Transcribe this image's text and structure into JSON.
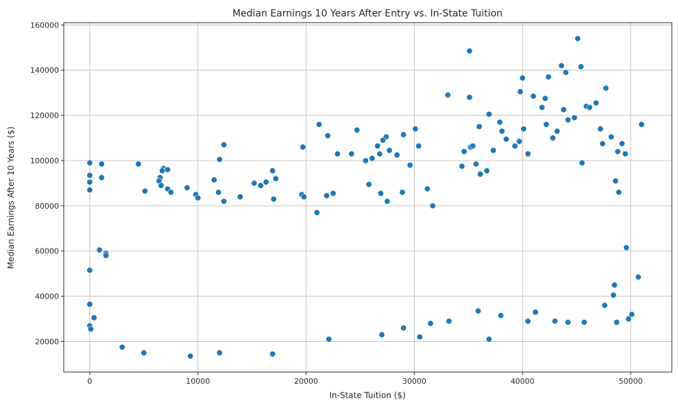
{
  "chart_data": {
    "type": "scatter",
    "title": "Median Earnings 10 Years After Entry vs. In-State Tuition",
    "xlabel": "In-State Tuition ($)",
    "ylabel": "Median Earnings After 10 Years ($)",
    "xlim": [
      -2400,
      53800
    ],
    "ylim": [
      6500,
      161000
    ],
    "xticks": [
      0,
      10000,
      20000,
      30000,
      40000,
      50000
    ],
    "xtick_labels": [
      "0",
      "10000",
      "20000",
      "30000",
      "40000",
      "50000"
    ],
    "yticks": [
      20000,
      40000,
      60000,
      80000,
      100000,
      120000,
      140000,
      160000
    ],
    "ytick_labels": [
      "20000",
      "40000",
      "60000",
      "80000",
      "100000",
      "120000",
      "140000",
      "160000"
    ],
    "grid": true,
    "marker_color": "#1f77b4",
    "marker_edge_color": "#ffffff",
    "points": [
      [
        0,
        99000
      ],
      [
        0,
        93500
      ],
      [
        0,
        90500
      ],
      [
        0,
        87000
      ],
      [
        0,
        51500
      ],
      [
        0,
        36500
      ],
      [
        0,
        27000
      ],
      [
        100,
        25500
      ],
      [
        400,
        30500
      ],
      [
        1100,
        98500
      ],
      [
        1100,
        92500
      ],
      [
        1500,
        59000
      ],
      [
        1500,
        58000
      ],
      [
        900,
        60500
      ],
      [
        4500,
        98500
      ],
      [
        6800,
        96500
      ],
      [
        7200,
        96000
      ],
      [
        6700,
        95500
      ],
      [
        6500,
        92500
      ],
      [
        6400,
        91000
      ],
      [
        5100,
        86500
      ],
      [
        6600,
        89000
      ],
      [
        7200,
        87500
      ],
      [
        7500,
        86000
      ],
      [
        9000,
        88000
      ],
      [
        9800,
        85000
      ],
      [
        10000,
        83500
      ],
      [
        12400,
        107000
      ],
      [
        12000,
        100500
      ],
      [
        11500,
        91500
      ],
      [
        11900,
        86000
      ],
      [
        12400,
        82000
      ],
      [
        13900,
        84000
      ],
      [
        15200,
        90000
      ],
      [
        15800,
        89000
      ],
      [
        16300,
        90500
      ],
      [
        16900,
        95500
      ],
      [
        17200,
        92000
      ],
      [
        17000,
        83000
      ],
      [
        19700,
        106000
      ],
      [
        19600,
        85000
      ],
      [
        19800,
        84000
      ],
      [
        21000,
        77000
      ],
      [
        21200,
        116000
      ],
      [
        22000,
        111000
      ],
      [
        22900,
        103000
      ],
      [
        24200,
        103000
      ],
      [
        24700,
        113500
      ],
      [
        22500,
        85500
      ],
      [
        21900,
        84500
      ],
      [
        25500,
        100000
      ],
      [
        26100,
        101000
      ],
      [
        26600,
        106500
      ],
      [
        26800,
        103000
      ],
      [
        27400,
        110500
      ],
      [
        27100,
        109000
      ],
      [
        27700,
        104500
      ],
      [
        28400,
        102500
      ],
      [
        29000,
        111500
      ],
      [
        29600,
        98000
      ],
      [
        30100,
        114000
      ],
      [
        30400,
        106500
      ],
      [
        25800,
        89500
      ],
      [
        26900,
        85500
      ],
      [
        27500,
        82000
      ],
      [
        28900,
        86000
      ],
      [
        31200,
        87500
      ],
      [
        31700,
        80000
      ],
      [
        33100,
        129000
      ],
      [
        35100,
        148500
      ],
      [
        35100,
        128000
      ],
      [
        34600,
        104000
      ],
      [
        35200,
        106000
      ],
      [
        35400,
        106500
      ],
      [
        34400,
        97500
      ],
      [
        36000,
        115000
      ],
      [
        36700,
        95500
      ],
      [
        36100,
        94000
      ],
      [
        35700,
        98500
      ],
      [
        36900,
        120500
      ],
      [
        37300,
        104500
      ],
      [
        37900,
        117000
      ],
      [
        38100,
        113000
      ],
      [
        38500,
        109500
      ],
      [
        39300,
        106500
      ],
      [
        39700,
        108500
      ],
      [
        40000,
        136500
      ],
      [
        39800,
        130500
      ],
      [
        40100,
        114000
      ],
      [
        40500,
        103000
      ],
      [
        41000,
        128500
      ],
      [
        41800,
        123500
      ],
      [
        42100,
        127500
      ],
      [
        42200,
        116000
      ],
      [
        42400,
        137000
      ],
      [
        43200,
        113000
      ],
      [
        42800,
        110000
      ],
      [
        43600,
        142000
      ],
      [
        43800,
        122500
      ],
      [
        44000,
        139000
      ],
      [
        44200,
        118000
      ],
      [
        44800,
        119000
      ],
      [
        45100,
        154000
      ],
      [
        45400,
        141500
      ],
      [
        45500,
        99000
      ],
      [
        45900,
        124000
      ],
      [
        46200,
        123500
      ],
      [
        46800,
        125500
      ],
      [
        47200,
        114000
      ],
      [
        47700,
        132000
      ],
      [
        47400,
        107500
      ],
      [
        48200,
        110500
      ],
      [
        48800,
        104000
      ],
      [
        49200,
        107500
      ],
      [
        49500,
        103000
      ],
      [
        48600,
        91000
      ],
      [
        48900,
        86000
      ],
      [
        49600,
        61500
      ],
      [
        50100,
        32000
      ],
      [
        49800,
        30000
      ],
      [
        50700,
        48500
      ],
      [
        51000,
        116000
      ],
      [
        48700,
        28500
      ],
      [
        48500,
        45000
      ],
      [
        36900,
        21000
      ],
      [
        30500,
        22000
      ],
      [
        16900,
        14500
      ],
      [
        9300,
        13500
      ],
      [
        5000,
        15000
      ],
      [
        3000,
        17500
      ],
      [
        12000,
        15000
      ],
      [
        22100,
        21000
      ],
      [
        27000,
        23000
      ],
      [
        43000,
        29000
      ],
      [
        44200,
        28500
      ],
      [
        45700,
        28500
      ],
      [
        47600,
        36000
      ],
      [
        48400,
        40500
      ],
      [
        40500,
        29000
      ],
      [
        41200,
        33000
      ],
      [
        38000,
        31500
      ],
      [
        35900,
        33500
      ],
      [
        33200,
        29000
      ],
      [
        31500,
        28000
      ],
      [
        29000,
        26000
      ]
    ]
  }
}
